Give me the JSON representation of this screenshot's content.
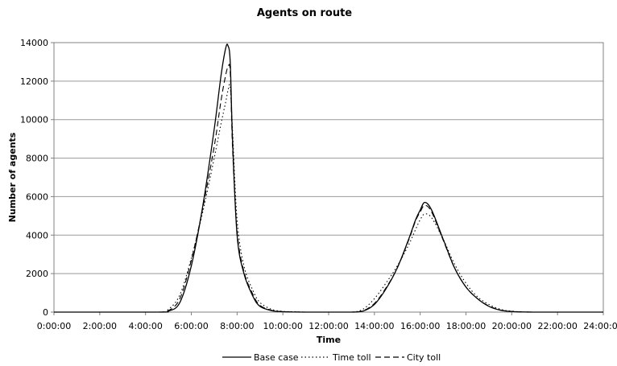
{
  "chart_data": {
    "type": "line",
    "title": "Agents on route",
    "xlabel": "Time",
    "ylabel": "Number of agents",
    "xlim": [
      0,
      24
    ],
    "ylim": [
      0,
      14000
    ],
    "x_ticks": [
      "0:00:00",
      "2:00:00",
      "4:00:00",
      "6:00:00",
      "8:00:00",
      "10:00:00",
      "12:00:00",
      "14:00:00",
      "16:00:00",
      "18:00:00",
      "20:00:00",
      "22:00:00",
      "24:00:00"
    ],
    "y_ticks": [
      "0",
      "2000",
      "4000",
      "6000",
      "8000",
      "10000",
      "12000",
      "14000"
    ],
    "grid": "horizontal",
    "legend_position": "bottom",
    "x_unit": "hours",
    "series": [
      {
        "name": "Base case",
        "style": "solid",
        "x": [
          0,
          4.5,
          5.0,
          5.5,
          6.0,
          6.5,
          7.0,
          7.3,
          7.5,
          7.6,
          7.7,
          7.8,
          8.0,
          8.3,
          8.7,
          9.0,
          9.5,
          10.0,
          11.0,
          12.0,
          13.0,
          13.5,
          14.0,
          14.5,
          15.0,
          15.5,
          15.8,
          16.0,
          16.2,
          16.5,
          17.0,
          17.5,
          18.0,
          18.5,
          19.0,
          19.5,
          20.0,
          21.0,
          24.0
        ],
        "y": [
          0,
          0,
          50,
          500,
          2400,
          5500,
          9500,
          12300,
          13700,
          13850,
          13000,
          9000,
          4000,
          2000,
          800,
          300,
          80,
          20,
          0,
          0,
          0,
          50,
          400,
          1200,
          2300,
          3800,
          4800,
          5300,
          5700,
          5300,
          3800,
          2300,
          1300,
          700,
          300,
          100,
          30,
          0,
          0
        ]
      },
      {
        "name": "Time toll",
        "style": "dotted",
        "x": [
          0,
          4.5,
          5.0,
          5.5,
          6.0,
          6.5,
          7.0,
          7.3,
          7.5,
          7.6,
          7.7,
          7.8,
          8.0,
          8.3,
          8.7,
          9.0,
          9.5,
          10.0,
          11.0,
          12.0,
          13.0,
          13.5,
          14.0,
          14.5,
          15.0,
          15.5,
          15.8,
          16.0,
          16.2,
          16.5,
          17.0,
          17.5,
          18.0,
          18.5,
          19.0,
          19.5,
          20.0,
          21.0,
          24.0
        ],
        "y": [
          0,
          0,
          150,
          900,
          2800,
          5200,
          8000,
          9800,
          10900,
          11500,
          11700,
          9500,
          4800,
          2400,
          1100,
          500,
          150,
          40,
          0,
          0,
          0,
          150,
          700,
          1500,
          2400,
          3500,
          4300,
          4800,
          5100,
          4900,
          3800,
          2500,
          1500,
          800,
          400,
          150,
          50,
          0,
          0
        ]
      },
      {
        "name": "City toll",
        "style": "dashed",
        "x": [
          0,
          4.5,
          5.0,
          5.5,
          6.0,
          6.5,
          7.0,
          7.3,
          7.5,
          7.6,
          7.7,
          7.8,
          8.0,
          8.3,
          8.7,
          9.0,
          9.5,
          10.0,
          11.0,
          12.0,
          13.0,
          13.5,
          14.0,
          14.5,
          15.0,
          15.5,
          15.8,
          16.0,
          16.2,
          16.5,
          17.0,
          17.5,
          18.0,
          18.5,
          19.0,
          19.5,
          20.0,
          21.0,
          24.0
        ],
        "y": [
          0,
          0,
          80,
          700,
          2700,
          5400,
          8600,
          11000,
          12300,
          12700,
          12500,
          8600,
          4200,
          2100,
          900,
          350,
          100,
          25,
          0,
          0,
          0,
          70,
          450,
          1250,
          2300,
          3750,
          4750,
          5200,
          5550,
          5200,
          3750,
          2300,
          1300,
          700,
          320,
          110,
          35,
          0,
          0
        ]
      }
    ]
  }
}
